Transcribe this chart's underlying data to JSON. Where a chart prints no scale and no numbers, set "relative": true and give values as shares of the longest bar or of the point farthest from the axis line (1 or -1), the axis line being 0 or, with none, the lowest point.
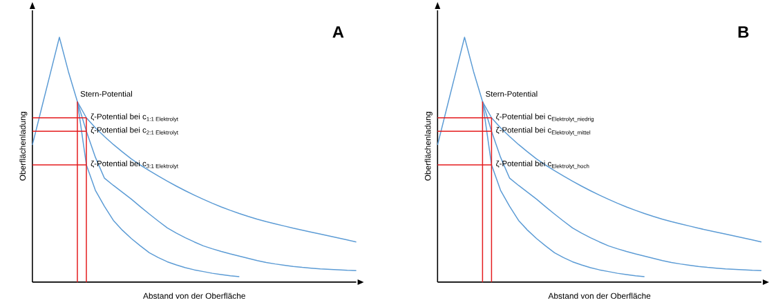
{
  "chart_data": [
    {
      "type": "line",
      "title": "A",
      "xlabel": "Abstand von der Oberfläche",
      "ylabel": "Oberflächenladung",
      "relative": true,
      "categories": [
        null,
        null,
        null,
        null,
        null,
        null,
        null,
        null,
        null,
        null,
        null,
        null,
        null,
        null,
        null,
        null,
        null,
        null,
        null,
        null,
        null,
        null,
        null,
        null,
        null,
        null,
        null,
        null,
        null,
        null,
        null,
        null,
        null,
        null,
        null,
        null,
        null
      ],
      "series": [
        {
          "color": "#5b9bd5",
          "values": [
            0.56,
            0.707,
            0.853,
            1.0,
            0.86,
            0.737,
            0.671,
            0.63,
            0.595,
            0.562,
            0.532,
            0.503,
            0.478,
            0.455,
            0.433,
            0.412,
            0.392,
            0.373,
            0.355,
            0.338,
            0.322,
            0.307,
            0.293,
            0.28,
            0.268,
            0.257,
            0.247,
            0.238,
            0.229,
            0.22,
            0.212,
            0.204,
            0.196,
            0.188,
            0.18,
            0.172,
            0.164
          ]
        },
        {
          "color": "#5b9bd5",
          "values": [
            null,
            null,
            null,
            null,
            null,
            0.737,
            0.616,
            0.51,
            0.425,
            0.395,
            0.367,
            0.339,
            0.308,
            0.278,
            0.249,
            0.221,
            0.2,
            0.181,
            0.164,
            0.148,
            0.136,
            0.125,
            0.115,
            0.106,
            0.097,
            0.088,
            0.08,
            0.074,
            0.069,
            0.064,
            0.06,
            0.057,
            0.054,
            0.052,
            0.05,
            0.048,
            0.047
          ]
        },
        {
          "color": "#5b9bd5",
          "values": [
            null,
            null,
            null,
            null,
            null,
            0.737,
            0.479,
            0.375,
            0.31,
            0.252,
            0.212,
            0.178,
            0.148,
            0.12,
            0.1,
            0.083,
            0.07,
            0.059,
            0.05,
            0.043,
            0.036,
            0.031,
            0.026,
            0.022,
            null,
            null,
            null,
            null,
            null,
            null,
            null,
            null,
            null,
            null,
            null,
            null,
            null
          ]
        },
        {
          "color": "#e41a1c",
          "values": [
            0.671,
            0.671,
            0.671,
            0.671,
            0.671,
            0.671,
            0.671,
            null,
            null,
            null,
            null,
            null,
            null,
            null,
            null,
            null,
            null,
            null,
            null,
            null,
            null,
            null,
            null,
            null,
            null,
            null,
            null,
            null,
            null,
            null,
            null,
            null,
            null,
            null,
            null,
            null,
            null
          ]
        },
        {
          "color": "#e41a1c",
          "values": [
            0.616,
            0.616,
            0.616,
            0.616,
            0.616,
            0.616,
            0.616,
            null,
            null,
            null,
            null,
            null,
            null,
            null,
            null,
            null,
            null,
            null,
            null,
            null,
            null,
            null,
            null,
            null,
            null,
            null,
            null,
            null,
            null,
            null,
            null,
            null,
            null,
            null,
            null,
            null,
            null
          ]
        },
        {
          "color": "#e41a1c",
          "values": [
            0.479,
            0.479,
            0.479,
            0.479,
            0.479,
            0.479,
            0.479,
            null,
            null,
            null,
            null,
            null,
            null,
            null,
            null,
            null,
            null,
            null,
            null,
            null,
            null,
            null,
            null,
            null,
            null,
            null,
            null,
            null,
            null,
            null,
            null,
            null,
            null,
            null,
            null,
            null,
            null
          ]
        }
      ],
      "annotations": [
        "Stern-Potential",
        "\\text{ζ-Potential bei c}_{\\text{1:1 Elektrolyt}}",
        "\\text{ζ-Potential bei c}_{\\text{2:1 Elektrolyt}}",
        "\\text{ζ-Potential bei c}_{\\text{3:1 Elektrolyt}}"
      ]
    },
    {
      "type": "line",
      "title": "B",
      "xlabel": "Abstand von der Oberfläche",
      "ylabel": "Oberflächenladung",
      "relative": true,
      "categories": [
        null,
        null,
        null,
        null,
        null,
        null,
        null,
        null,
        null,
        null,
        null,
        null,
        null,
        null,
        null,
        null,
        null,
        null,
        null,
        null,
        null,
        null,
        null,
        null,
        null,
        null,
        null,
        null,
        null,
        null,
        null,
        null,
        null,
        null,
        null,
        null,
        null
      ],
      "series": [
        {
          "color": "#5b9bd5",
          "values": [
            0.56,
            0.707,
            0.853,
            1.0,
            0.86,
            0.737,
            0.671,
            0.63,
            0.595,
            0.562,
            0.532,
            0.503,
            0.478,
            0.455,
            0.433,
            0.412,
            0.392,
            0.373,
            0.355,
            0.338,
            0.322,
            0.307,
            0.293,
            0.28,
            0.268,
            0.257,
            0.247,
            0.238,
            0.229,
            0.22,
            0.212,
            0.204,
            0.196,
            0.188,
            0.18,
            0.172,
            0.164
          ]
        },
        {
          "color": "#5b9bd5",
          "values": [
            null,
            null,
            null,
            null,
            null,
            0.737,
            0.616,
            0.51,
            0.425,
            0.395,
            0.367,
            0.339,
            0.308,
            0.278,
            0.249,
            0.221,
            0.2,
            0.181,
            0.164,
            0.148,
            0.136,
            0.125,
            0.115,
            0.106,
            0.097,
            0.088,
            0.08,
            0.074,
            0.069,
            0.064,
            0.06,
            0.057,
            0.054,
            0.052,
            0.05,
            0.048,
            0.047
          ]
        },
        {
          "color": "#5b9bd5",
          "values": [
            null,
            null,
            null,
            null,
            null,
            0.737,
            0.479,
            0.375,
            0.31,
            0.252,
            0.212,
            0.178,
            0.148,
            0.12,
            0.1,
            0.083,
            0.07,
            0.059,
            0.05,
            0.043,
            0.036,
            0.031,
            0.026,
            0.022,
            null,
            null,
            null,
            null,
            null,
            null,
            null,
            null,
            null,
            null,
            null,
            null,
            null
          ]
        },
        {
          "color": "#e41a1c",
          "values": [
            0.671,
            0.671,
            0.671,
            0.671,
            0.671,
            0.671,
            0.671,
            null,
            null,
            null,
            null,
            null,
            null,
            null,
            null,
            null,
            null,
            null,
            null,
            null,
            null,
            null,
            null,
            null,
            null,
            null,
            null,
            null,
            null,
            null,
            null,
            null,
            null,
            null,
            null,
            null,
            null
          ]
        },
        {
          "color": "#e41a1c",
          "values": [
            0.616,
            0.616,
            0.616,
            0.616,
            0.616,
            0.616,
            0.616,
            null,
            null,
            null,
            null,
            null,
            null,
            null,
            null,
            null,
            null,
            null,
            null,
            null,
            null,
            null,
            null,
            null,
            null,
            null,
            null,
            null,
            null,
            null,
            null,
            null,
            null,
            null,
            null,
            null,
            null
          ]
        },
        {
          "color": "#e41a1c",
          "values": [
            0.479,
            0.479,
            0.479,
            0.479,
            0.479,
            0.479,
            0.479,
            null,
            null,
            null,
            null,
            null,
            null,
            null,
            null,
            null,
            null,
            null,
            null,
            null,
            null,
            null,
            null,
            null,
            null,
            null,
            null,
            null,
            null,
            null,
            null,
            null,
            null,
            null,
            null,
            null,
            null
          ]
        }
      ],
      "annotations": [
        "Stern-Potential",
        "\\text{ζ-Potential bei c}_{\\text{Elektrolyt\\_niedrig}}",
        "\\text{ζ-Potential bei c}_{\\text{Elektrolyt\\_mittel}}",
        "\\text{ζ-Potential bei c}_{\\text{Elektrolyt\\_hoch}}"
      ]
    }
  ]
}
